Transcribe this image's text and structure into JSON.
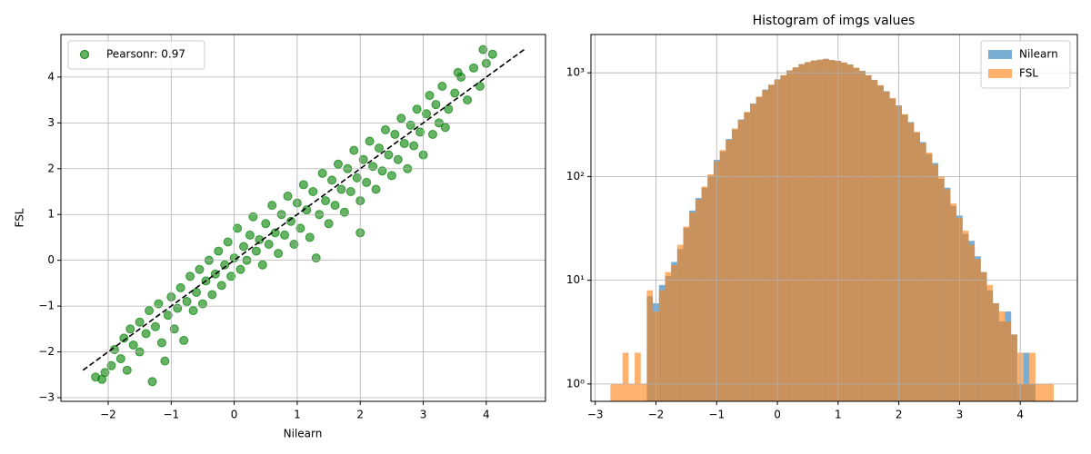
{
  "chart_data": [
    {
      "type": "scatter",
      "xlabel": "Nilearn",
      "ylabel": "FSL",
      "xlim": [
        -2.75,
        4.94
      ],
      "ylim": [
        -3.08,
        4.93
      ],
      "xticks": [
        {
          "value": -2,
          "label": "−2"
        },
        {
          "value": -1,
          "label": "−1"
        },
        0,
        1,
        2,
        3,
        4
      ],
      "yticks": [
        {
          "value": -3,
          "label": "−3"
        },
        {
          "value": -2,
          "label": "−2"
        },
        {
          "value": -1,
          "label": "−1"
        },
        0,
        1,
        2,
        3,
        4
      ],
      "grid": true,
      "legend": "upper left",
      "reference_line": {
        "x": [
          -2.4,
          4.6
        ],
        "y": [
          -2.4,
          4.6
        ]
      },
      "series": [
        {
          "name": "Pearsonr: 0.97",
          "color": "#008000",
          "x": [
            -2.2,
            -2.1,
            -2.05,
            -1.95,
            -1.9,
            -1.8,
            -1.75,
            -1.7,
            -1.65,
            -1.6,
            -1.5,
            -1.5,
            -1.4,
            -1.35,
            -1.3,
            -1.25,
            -1.2,
            -1.15,
            -1.1,
            -1.05,
            -1.0,
            -0.95,
            -0.9,
            -0.85,
            -0.8,
            -0.75,
            -0.7,
            -0.65,
            -0.6,
            -0.55,
            -0.5,
            -0.45,
            -0.4,
            -0.35,
            -0.3,
            -0.25,
            -0.2,
            -0.15,
            -0.1,
            -0.05,
            0.0,
            0.05,
            0.1,
            0.15,
            0.2,
            0.25,
            0.3,
            0.35,
            0.4,
            0.45,
            0.5,
            0.55,
            0.6,
            0.65,
            0.7,
            0.75,
            0.8,
            0.85,
            0.9,
            0.95,
            1.0,
            1.05,
            1.1,
            1.15,
            1.2,
            1.25,
            1.3,
            1.35,
            1.4,
            1.45,
            1.5,
            1.55,
            1.6,
            1.65,
            1.7,
            1.75,
            1.8,
            1.85,
            1.9,
            1.95,
            2.0,
            2.0,
            2.05,
            2.1,
            2.15,
            2.2,
            2.25,
            2.3,
            2.35,
            2.4,
            2.45,
            2.5,
            2.55,
            2.6,
            2.65,
            2.7,
            2.75,
            2.8,
            2.85,
            2.9,
            2.95,
            3.0,
            3.05,
            3.1,
            3.15,
            3.2,
            3.25,
            3.3,
            3.4,
            3.5,
            3.6,
            3.7,
            3.8,
            3.9,
            4.0,
            4.1,
            3.95,
            3.55,
            3.35
          ],
          "values": [
            -2.55,
            -2.6,
            -2.45,
            -2.3,
            -1.95,
            -2.15,
            -1.7,
            -2.4,
            -1.5,
            -1.85,
            -1.35,
            -2.0,
            -1.6,
            -1.1,
            -2.65,
            -1.45,
            -0.95,
            -1.8,
            -2.2,
            -1.2,
            -0.8,
            -1.5,
            -1.05,
            -0.6,
            -1.75,
            -0.9,
            -0.35,
            -1.1,
            -0.7,
            -0.2,
            -0.95,
            -0.45,
            0.0,
            -0.75,
            -0.3,
            0.2,
            -0.55,
            -0.1,
            0.4,
            -0.35,
            0.05,
            0.7,
            -0.2,
            0.3,
            0.0,
            0.55,
            0.95,
            0.2,
            0.45,
            -0.1,
            0.8,
            0.35,
            1.2,
            0.6,
            0.15,
            1.0,
            0.55,
            1.4,
            0.85,
            0.35,
            1.25,
            0.7,
            1.65,
            1.1,
            0.5,
            1.5,
            0.05,
            1.0,
            1.9,
            1.3,
            0.8,
            1.75,
            1.2,
            2.1,
            1.55,
            1.05,
            2.0,
            1.5,
            2.4,
            1.8,
            0.6,
            1.3,
            2.2,
            1.7,
            2.6,
            2.05,
            1.55,
            2.45,
            1.95,
            2.85,
            2.3,
            1.85,
            2.75,
            2.2,
            3.1,
            2.55,
            2.0,
            2.95,
            2.5,
            3.3,
            2.8,
            2.3,
            3.2,
            3.6,
            2.75,
            3.4,
            3.0,
            3.8,
            3.3,
            3.65,
            4.0,
            3.5,
            4.2,
            3.8,
            4.3,
            4.5,
            4.6,
            4.1,
            2.9
          ]
        }
      ]
    },
    {
      "type": "histogram",
      "title": "Histogram of imgs values",
      "xlim": [
        -3.07,
        4.94
      ],
      "ylim": [
        0.68,
        2340
      ],
      "log_y": true,
      "xticks": [
        {
          "value": -3,
          "label": "−3"
        },
        {
          "value": -2,
          "label": "−2"
        },
        {
          "value": -1,
          "label": "−1"
        },
        0,
        1,
        2,
        3,
        4
      ],
      "yticks": [
        {
          "value": 1,
          "label": "10⁰"
        },
        {
          "value": 10,
          "label": "10¹"
        },
        {
          "value": 100,
          "label": "10²"
        },
        {
          "value": 1000,
          "label": "10³"
        }
      ],
      "grid": true,
      "legend": "upper right",
      "alpha": 0.6,
      "bins": [
        -2.75,
        -2.65,
        -2.55,
        -2.45,
        -2.35,
        -2.25,
        -2.15,
        -2.05,
        -1.95,
        -1.85,
        -1.75,
        -1.65,
        -1.55,
        -1.45,
        -1.35,
        -1.25,
        -1.15,
        -1.05,
        -0.95,
        -0.85,
        -0.75,
        -0.65,
        -0.55,
        -0.45,
        -0.35,
        -0.25,
        -0.15,
        -0.05,
        0.05,
        0.15,
        0.25,
        0.35,
        0.45,
        0.55,
        0.65,
        0.75,
        0.85,
        0.95,
        1.05,
        1.15,
        1.25,
        1.35,
        1.45,
        1.55,
        1.65,
        1.75,
        1.85,
        1.95,
        2.05,
        2.15,
        2.25,
        2.35,
        2.45,
        2.55,
        2.65,
        2.75,
        2.85,
        2.95,
        3.05,
        3.15,
        3.25,
        3.35,
        3.45,
        3.55,
        3.65,
        3.75,
        3.85,
        3.95,
        4.05,
        4.15,
        4.25,
        4.35,
        4.45,
        4.55
      ],
      "series": [
        {
          "name": "Nilearn",
          "color": "#1f77b4",
          "values": [
            0,
            0,
            0,
            0,
            0,
            0,
            7,
            6,
            9,
            11,
            15,
            20,
            32,
            47,
            62,
            78,
            102,
            145,
            175,
            230,
            285,
            355,
            415,
            505,
            585,
            690,
            765,
            865,
            945,
            1055,
            1125,
            1215,
            1265,
            1315,
            1335,
            1365,
            1325,
            1305,
            1255,
            1205,
            1115,
            1045,
            945,
            855,
            755,
            665,
            565,
            485,
            395,
            335,
            265,
            215,
            165,
            135,
            95,
            78,
            52,
            42,
            28,
            24,
            17,
            12,
            8,
            6,
            4,
            5,
            3,
            1,
            2,
            1,
            0,
            0,
            0
          ]
        },
        {
          "name": "FSL",
          "color": "#ff7f0e",
          "values": [
            1,
            1,
            2,
            1,
            2,
            1,
            8,
            5,
            8,
            12,
            14,
            22,
            33,
            45,
            60,
            80,
            105,
            140,
            180,
            225,
            290,
            350,
            420,
            500,
            590,
            680,
            770,
            860,
            950,
            1050,
            1130,
            1210,
            1270,
            1310,
            1340,
            1360,
            1330,
            1300,
            1260,
            1200,
            1120,
            1040,
            950,
            850,
            760,
            660,
            570,
            480,
            400,
            330,
            270,
            210,
            170,
            130,
            100,
            75,
            55,
            40,
            30,
            22,
            16,
            12,
            9,
            6,
            5,
            4,
            3,
            2,
            1,
            2,
            1,
            1,
            1
          ]
        }
      ]
    }
  ]
}
